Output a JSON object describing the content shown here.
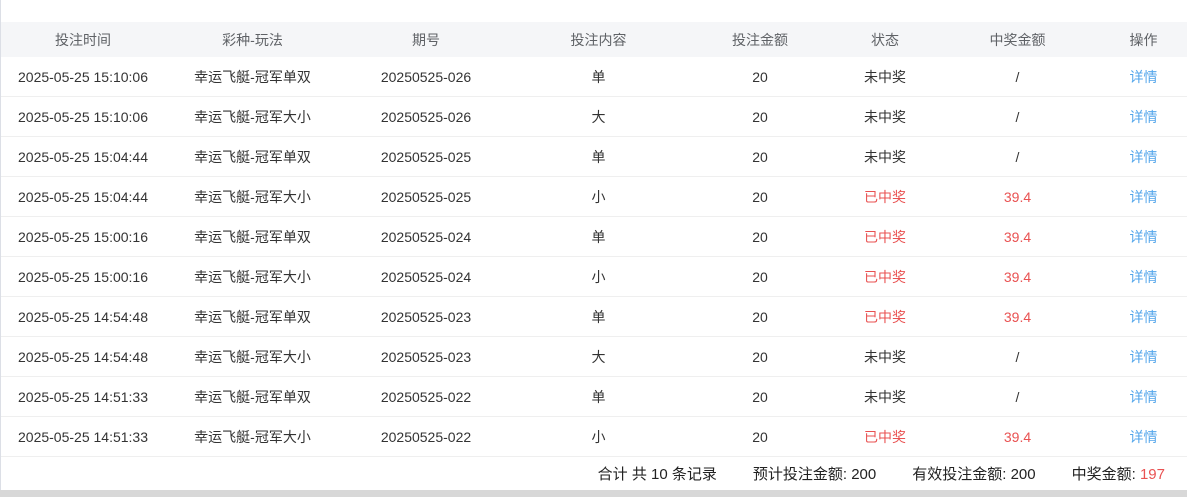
{
  "table": {
    "columns": [
      {
        "key": "time",
        "label": "投注时间"
      },
      {
        "key": "play",
        "label": "彩种-玩法"
      },
      {
        "key": "issue",
        "label": "期号"
      },
      {
        "key": "content",
        "label": "投注内容"
      },
      {
        "key": "amount",
        "label": "投注金额"
      },
      {
        "key": "status",
        "label": "状态"
      },
      {
        "key": "win",
        "label": "中奖金额"
      },
      {
        "key": "op",
        "label": "操作"
      }
    ],
    "detail_label": "详情",
    "rows": [
      {
        "time": "2025-05-25 15:10:06",
        "play": "幸运飞艇-冠军单双",
        "issue": "20250525-026",
        "content": "单",
        "amount": "20",
        "status": "未中奖",
        "win": "/",
        "won": false
      },
      {
        "time": "2025-05-25 15:10:06",
        "play": "幸运飞艇-冠军大小",
        "issue": "20250525-026",
        "content": "大",
        "amount": "20",
        "status": "未中奖",
        "win": "/",
        "won": false
      },
      {
        "time": "2025-05-25 15:04:44",
        "play": "幸运飞艇-冠军单双",
        "issue": "20250525-025",
        "content": "单",
        "amount": "20",
        "status": "未中奖",
        "win": "/",
        "won": false
      },
      {
        "time": "2025-05-25 15:04:44",
        "play": "幸运飞艇-冠军大小",
        "issue": "20250525-025",
        "content": "小",
        "amount": "20",
        "status": "已中奖",
        "win": "39.4",
        "won": true
      },
      {
        "time": "2025-05-25 15:00:16",
        "play": "幸运飞艇-冠军单双",
        "issue": "20250525-024",
        "content": "单",
        "amount": "20",
        "status": "已中奖",
        "win": "39.4",
        "won": true
      },
      {
        "time": "2025-05-25 15:00:16",
        "play": "幸运飞艇-冠军大小",
        "issue": "20250525-024",
        "content": "小",
        "amount": "20",
        "status": "已中奖",
        "win": "39.4",
        "won": true
      },
      {
        "time": "2025-05-25 14:54:48",
        "play": "幸运飞艇-冠军单双",
        "issue": "20250525-023",
        "content": "单",
        "amount": "20",
        "status": "已中奖",
        "win": "39.4",
        "won": true
      },
      {
        "time": "2025-05-25 14:54:48",
        "play": "幸运飞艇-冠军大小",
        "issue": "20250525-023",
        "content": "大",
        "amount": "20",
        "status": "未中奖",
        "win": "/",
        "won": false
      },
      {
        "time": "2025-05-25 14:51:33",
        "play": "幸运飞艇-冠军单双",
        "issue": "20250525-022",
        "content": "单",
        "amount": "20",
        "status": "未中奖",
        "win": "/",
        "won": false
      },
      {
        "time": "2025-05-25 14:51:33",
        "play": "幸运飞艇-冠军大小",
        "issue": "20250525-022",
        "content": "小",
        "amount": "20",
        "status": "已中奖",
        "win": "39.4",
        "won": true
      }
    ]
  },
  "summary": {
    "total_label": "合计 共 10 条记录",
    "expected_label": "预计投注金额:",
    "expected_value": "200",
    "valid_label": "有效投注金额:",
    "valid_value": "200",
    "win_label": "中奖金额:",
    "win_value": "197"
  },
  "colors": {
    "link_blue": "#54a6eb",
    "highlight_red": "#e95252",
    "header_bg": "#f5f6f8"
  }
}
